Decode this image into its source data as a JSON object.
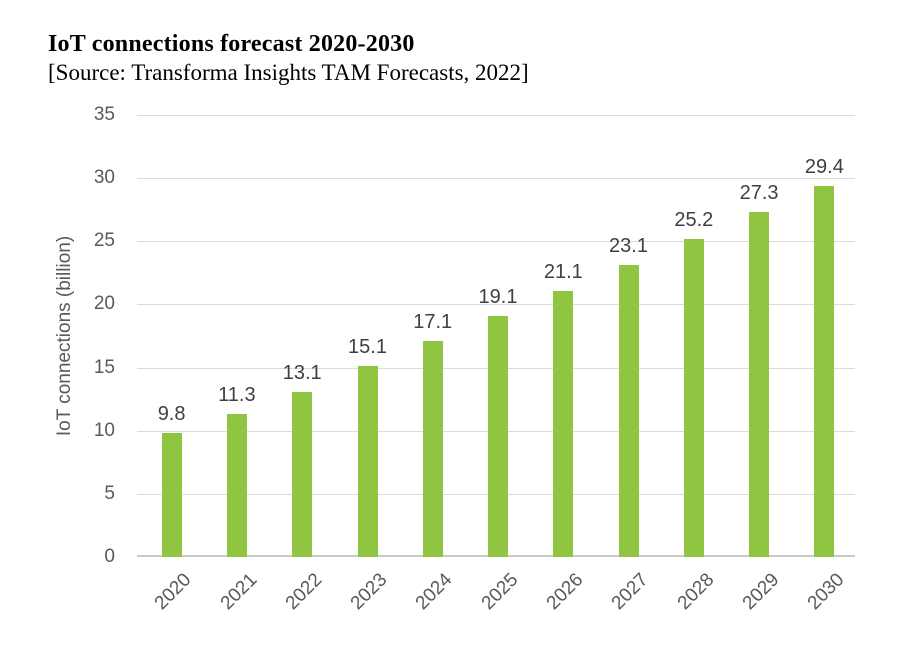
{
  "header": {
    "title": "IoT connections forecast 2020-2030",
    "subtitle": "[Source: Transforma Insights TAM Forecasts, 2022]"
  },
  "chart_data": {
    "type": "bar",
    "title": "IoT connections forecast 2020-2030",
    "subtitle": "[Source: Transforma Insights TAM Forecasts, 2022]",
    "categories": [
      "2020",
      "2021",
      "2022",
      "2023",
      "2024",
      "2025",
      "2026",
      "2027",
      "2028",
      "2029",
      "2030"
    ],
    "values": [
      9.8,
      11.3,
      13.1,
      15.1,
      17.1,
      19.1,
      21.1,
      23.1,
      25.2,
      27.3,
      29.4
    ],
    "xlabel": "",
    "ylabel": "IoT connections (billion)",
    "ylim": [
      0,
      35
    ],
    "yticks": [
      0,
      5,
      10,
      15,
      20,
      25,
      30,
      35
    ],
    "grid": true,
    "legend": false,
    "data_labels": true,
    "colors": {
      "bar": "#8FC541",
      "gridline": "#DADADA",
      "axis_line": "#C9C9C9",
      "tick_text": "#595959",
      "data_label_text": "#404040",
      "title_text": "#000000"
    }
  }
}
